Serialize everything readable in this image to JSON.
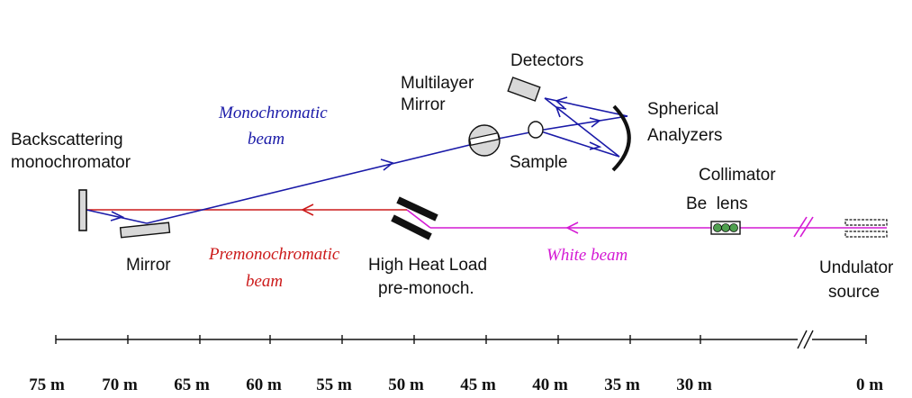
{
  "labels": {
    "backscattering": [
      "Backscattering",
      "monochromator"
    ],
    "mirror": "Mirror",
    "premono_beam": [
      "Premonochromatic",
      "beam"
    ],
    "mono_beam": [
      "Monochromatic",
      "beam"
    ],
    "multilayer": [
      "Multilayer",
      "Mirror"
    ],
    "detectors": "Detectors",
    "sample": "Sample",
    "analyzers": [
      "Spherical",
      "Analyzers"
    ],
    "hhl": [
      "High Heat Load",
      "pre-monoch."
    ],
    "white_beam": "White beam",
    "collimator": [
      "Collimator",
      "Be  lens"
    ],
    "undulator": [
      "Undulator",
      "source"
    ]
  },
  "scale": {
    "ticks": [
      "75 m",
      "70 m",
      "65 m",
      "60 m",
      "55 m",
      "50 m",
      "45 m",
      "40 m",
      "35 m",
      "30 m",
      "0 m"
    ]
  },
  "colors": {
    "blue": "#1a1aa8",
    "red": "#cc1a1a",
    "magenta": "#d41ad4",
    "black": "#111111",
    "gray": "#d8d8d8"
  }
}
